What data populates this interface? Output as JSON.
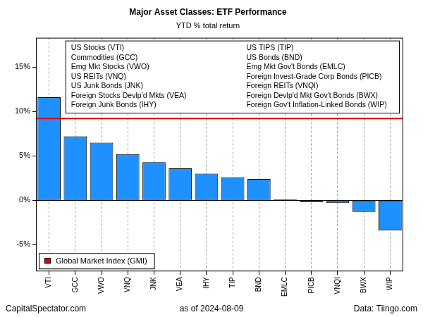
{
  "chart_data": {
    "type": "bar",
    "title": "Major Asset Classes: ETF Performance",
    "subtitle": "YTD % total return",
    "categories": [
      "VTI",
      "GCC",
      "VWO",
      "VNQ",
      "JNK",
      "VEA",
      "IHY",
      "TIP",
      "BND",
      "EMLC",
      "PICB",
      "VNQI",
      "BWX",
      "WIP"
    ],
    "values": [
      11.6,
      7.2,
      6.5,
      5.2,
      4.3,
      3.6,
      3.0,
      2.6,
      2.4,
      0.1,
      -0.2,
      -0.3,
      -1.3,
      -3.4
    ],
    "color": "#1e90ff",
    "ylim": [
      -8,
      18.3
    ],
    "yticks": [
      {
        "value": -5,
        "label": "-5%"
      },
      {
        "value": 0,
        "label": "0%"
      },
      {
        "value": 5,
        "label": "5%"
      },
      {
        "value": 10,
        "label": "10%"
      },
      {
        "value": 15,
        "label": "15%"
      }
    ],
    "grid": true,
    "annotations": [
      [
        "US Stocks (VTI)",
        "Commodities (GCC)",
        "Emg Mkt Stocks (VWO)",
        "US REITs (VNQ)",
        "US Junk Bonds (JNK)",
        "Foreign Stocks Devlp'd Mkts (VEA)",
        "Foreign Junk Bonds (IHY)"
      ],
      [
        "US TIPS (TIP)",
        "US Bonds (BND)",
        "Emg Mkt Gov't Bonds (EMLC)",
        "Foreign Invest-Grade Corp Bonds (PICB)",
        "Foreign REITs (VNQI)",
        "Foreign Devlp'd Mkt Gov't Bonds (BWX)",
        "Foreign Gov't Inflation-Linked Bonds (WIP)"
      ]
    ],
    "reference_line": {
      "name": "Global Market Index (GMI)",
      "value": 9.2,
      "color": "#e00000"
    },
    "legend": "bottom-left",
    "footer": [
      "CapitalSpectator.com",
      "as of 2024-08-09",
      "Data: Tiingo.com"
    ]
  }
}
